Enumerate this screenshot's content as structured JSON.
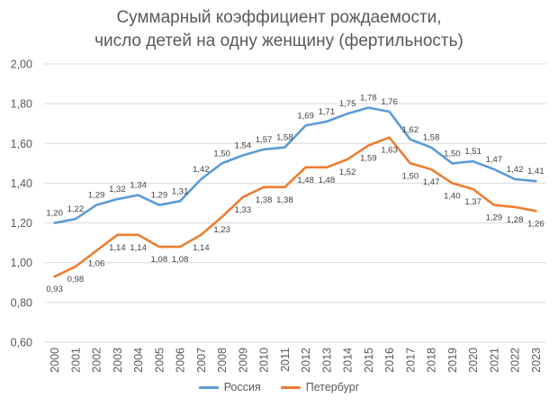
{
  "chart_data": {
    "type": "line",
    "title": [
      "Суммарный коэффициент рождаемости,",
      "число детей на одну женщину (фертильность)"
    ],
    "x": [
      "2000",
      "2001",
      "2002",
      "2003",
      "2004",
      "2005",
      "2006",
      "2007",
      "2008",
      "2009",
      "2010",
      "2011",
      "2012",
      "2013",
      "2014",
      "2015",
      "2016",
      "2017",
      "2018",
      "2019",
      "2020",
      "2021",
      "2022",
      "2023"
    ],
    "ylim": [
      0.6,
      2.0
    ],
    "yticks": [
      "0,60",
      "0,80",
      "1,00",
      "1,20",
      "1,40",
      "1,60",
      "1,80",
      "2,00"
    ],
    "grid": true,
    "legend_position": "bottom",
    "series": [
      {
        "name": "Россия",
        "color": "#5B9BD5",
        "values": [
          1.2,
          1.22,
          1.29,
          1.32,
          1.34,
          1.29,
          1.31,
          1.42,
          1.5,
          1.54,
          1.57,
          1.58,
          1.69,
          1.71,
          1.75,
          1.78,
          1.76,
          1.62,
          1.58,
          1.5,
          1.51,
          1.47,
          1.42,
          1.41
        ],
        "labels": [
          "1,20",
          "1,22",
          "1,29",
          "1,32",
          "1,34",
          "1,29",
          "1,31",
          "1,42",
          "1,50",
          "1,54",
          "1,57",
          "1,58",
          "1,69",
          "1,71",
          "1,75",
          "1,78",
          "1,76",
          "1,62",
          "1,58",
          "1,50",
          "1,51",
          "1,47",
          "1,42",
          "1,41"
        ]
      },
      {
        "name": "Петербург",
        "color": "#ED7D31",
        "values": [
          0.93,
          0.98,
          1.06,
          1.14,
          1.14,
          1.08,
          1.08,
          1.14,
          1.23,
          1.33,
          1.38,
          1.38,
          1.48,
          1.48,
          1.52,
          1.59,
          1.63,
          1.5,
          1.47,
          1.4,
          1.37,
          1.29,
          1.28,
          1.26
        ],
        "labels": [
          "0,93",
          "0,98",
          "1,06",
          "1,14",
          "1,14",
          "1,08",
          "1,08",
          "1,14",
          "1,23",
          "1,33",
          "1,38",
          "1,38",
          "1,48",
          "1,48",
          "1,52",
          "1,59",
          "1,63",
          "1,50",
          "1,47",
          "1,40",
          "1,37",
          "1,29",
          "1,28",
          "1,26"
        ]
      }
    ]
  },
  "styles": {
    "grid_color": "#D9D9D9",
    "text_color": "#595959",
    "label_color": "#404040"
  }
}
